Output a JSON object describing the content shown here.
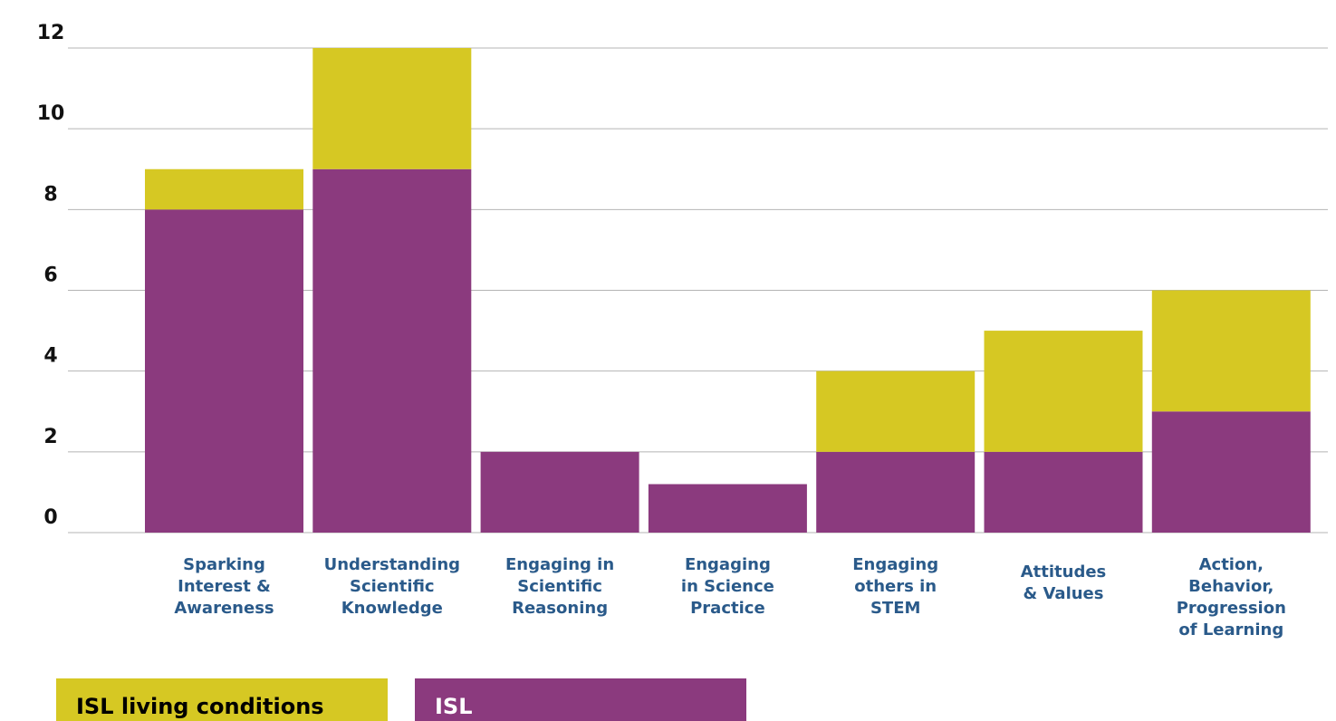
{
  "chart_data": {
    "type": "bar",
    "stacked": true,
    "categories": [
      "Sparking\nInterest &\nAwareness",
      "Understanding\nScientific\nKnowledge",
      "Engaging in\nScientific\nReasoning",
      "Engaging\nin Science\nPractice",
      "Engaging\nothers in\nSTEM",
      "Attitudes\n& Values",
      "Action,\nBehavior,\nProgression\nof Learning"
    ],
    "series": [
      {
        "name": "ISL",
        "color": "#8b3a7e",
        "values": [
          8,
          9,
          2,
          1.2,
          2,
          2,
          3
        ]
      },
      {
        "name": "ISL living conditions",
        "color": "#d6c823",
        "values": [
          1,
          3,
          0,
          0,
          2,
          3,
          3
        ]
      }
    ],
    "yticks": [
      "0",
      "2",
      "4",
      "6",
      "8",
      "10",
      "12"
    ],
    "ylim": [
      0,
      12
    ],
    "grid": true,
    "legend_position": "bottom-left"
  }
}
